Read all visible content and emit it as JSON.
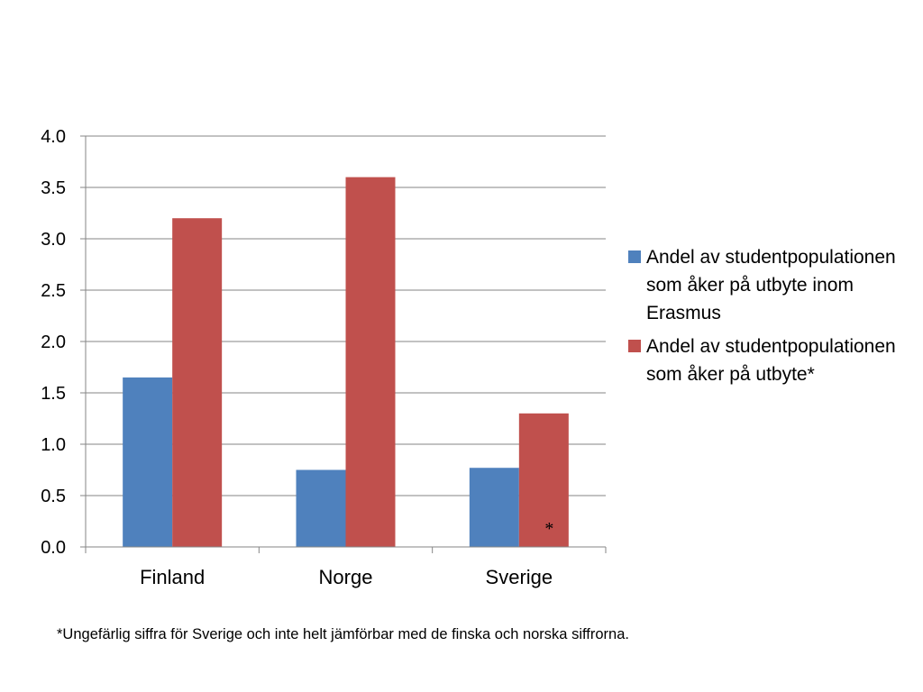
{
  "chart_data": {
    "type": "bar",
    "categories": [
      "Finland",
      "Norge",
      "Sverige"
    ],
    "series": [
      {
        "name": "Andel av studentpopulationen som åker på utbyte inom Erasmus",
        "values": [
          1.65,
          0.75,
          0.77
        ],
        "color": "#4f81bd"
      },
      {
        "name": "Andel av studentpopulationen som åker på utbyte*",
        "values": [
          3.2,
          3.6,
          1.3
        ],
        "color": "#c0504d"
      }
    ],
    "yticks": [
      "0.0",
      "0.5",
      "1.0",
      "1.5",
      "2.0",
      "2.5",
      "3.0",
      "3.5",
      "4.0"
    ],
    "ylim": [
      0,
      4
    ],
    "grid": true,
    "legend_position": "right",
    "annotation": {
      "text": "*",
      "category": "Sverige",
      "series_index": 1
    }
  },
  "footnote": "*Ungefärlig siffra för Sverige och inte helt jämförbar med de finska och norska siffrorna."
}
